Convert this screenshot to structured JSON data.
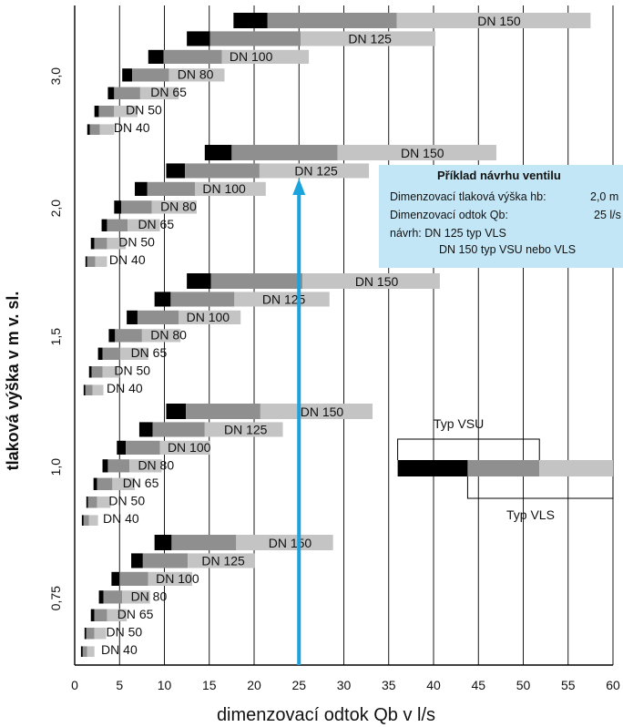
{
  "chart_data": {
    "type": "bar",
    "title": "",
    "xlabel": "dimenzovací odtok Qb v l/s",
    "ylabel": "tlaková výška v  m v. sl.",
    "xlim": [
      0,
      60
    ],
    "xticks": [
      "0",
      "5",
      "10",
      "15",
      "20",
      "25",
      "30",
      "35",
      "40",
      "45",
      "50",
      "55",
      "60"
    ],
    "grid": "vertical",
    "ytick_labels": [
      "0,75",
      "1,0",
      "1,5",
      "2,0",
      "3,0"
    ],
    "colors": {
      "black": "#000000",
      "dark": "#8f8f8f",
      "light": "#c4c4c4",
      "arrow": "#1aa3dc"
    },
    "groups": [
      {
        "label": "3,0",
        "bars": [
          {
            "name": "DN 150",
            "values": [
              17.7,
              21.5,
              35.9,
              57.5
            ]
          },
          {
            "name": "DN 125",
            "values": [
              12.5,
              15.1,
              25.2,
              40.2
            ]
          },
          {
            "name": "DN 100",
            "values": [
              8.2,
              9.9,
              16.4,
              26.1
            ]
          },
          {
            "name": "DN 80",
            "values": [
              5.3,
              6.4,
              10.5,
              16.7
            ]
          },
          {
            "name": "DN 65",
            "values": [
              3.7,
              4.4,
              7.3,
              11.6
            ]
          },
          {
            "name": "DN 50",
            "values": [
              2.2,
              2.7,
              4.4,
              7.0
            ]
          },
          {
            "name": "DN 40",
            "values": [
              1.4,
              1.7,
              2.8,
              4.4
            ]
          }
        ]
      },
      {
        "label": "2,0",
        "bars": [
          {
            "name": "DN 150",
            "values": [
              14.5,
              17.5,
              29.3,
              47.0
            ]
          },
          {
            "name": "DN 125",
            "values": [
              10.2,
              12.3,
              20.6,
              32.8
            ]
          },
          {
            "name": "DN 100",
            "values": [
              6.7,
              8.1,
              13.4,
              21.3
            ]
          },
          {
            "name": "DN 80",
            "values": [
              4.4,
              5.2,
              8.6,
              13.6
            ]
          },
          {
            "name": "DN 65",
            "values": [
              3.0,
              3.6,
              5.9,
              9.5
            ]
          },
          {
            "name": "DN 50",
            "values": [
              1.8,
              2.2,
              3.6,
              5.7
            ]
          },
          {
            "name": "DN 40",
            "values": [
              1.2,
              1.4,
              2.3,
              3.6
            ]
          }
        ]
      },
      {
        "label": "1,5",
        "bars": [
          {
            "name": "DN 150",
            "values": [
              12.5,
              15.2,
              25.4,
              40.7
            ]
          },
          {
            "name": "DN 125",
            "values": [
              8.9,
              10.7,
              17.8,
              28.4
            ]
          },
          {
            "name": "DN 100",
            "values": [
              5.8,
              7.0,
              11.6,
              18.5
            ]
          },
          {
            "name": "DN 80",
            "values": [
              3.8,
              4.5,
              7.5,
              11.8
            ]
          },
          {
            "name": "DN 65",
            "values": [
              2.6,
              3.1,
              5.1,
              8.2
            ]
          },
          {
            "name": "DN 50",
            "values": [
              1.6,
              1.9,
              3.1,
              5.0
            ]
          },
          {
            "name": "DN 40",
            "values": [
              1.0,
              1.2,
              2.0,
              3.2
            ]
          }
        ]
      },
      {
        "label": "1,0",
        "bars": [
          {
            "name": "DN 150",
            "values": [
              10.2,
              12.4,
              20.7,
              33.2
            ]
          },
          {
            "name": "DN 125",
            "values": [
              7.2,
              8.7,
              14.5,
              23.2
            ]
          },
          {
            "name": "DN 100",
            "values": [
              4.7,
              5.7,
              9.5,
              15.1
            ]
          },
          {
            "name": "DN 80",
            "values": [
              3.1,
              3.7,
              6.1,
              9.7
            ]
          },
          {
            "name": "DN 65",
            "values": [
              2.1,
              2.5,
              4.2,
              6.7
            ]
          },
          {
            "name": "DN 50",
            "values": [
              1.3,
              1.5,
              2.5,
              4.0
            ]
          },
          {
            "name": "DN 40",
            "values": [
              0.8,
              1.0,
              1.6,
              2.6
            ]
          }
        ]
      },
      {
        "label": "0,75",
        "bars": [
          {
            "name": "DN 150",
            "values": [
              8.9,
              10.8,
              18.0,
              28.8
            ]
          },
          {
            "name": "DN 125",
            "values": [
              6.3,
              7.6,
              12.6,
              20.1
            ]
          },
          {
            "name": "DN 100",
            "values": [
              4.1,
              5.0,
              8.2,
              13.1
            ]
          },
          {
            "name": "DN 80",
            "values": [
              2.7,
              3.2,
              5.3,
              8.4
            ]
          },
          {
            "name": "DN 65",
            "values": [
              1.8,
              2.2,
              3.6,
              5.8
            ]
          },
          {
            "name": "DN 50",
            "values": [
              1.1,
              1.3,
              2.2,
              3.5
            ]
          },
          {
            "name": "DN 40",
            "values": [
              0.7,
              0.9,
              1.4,
              2.2
            ]
          }
        ]
      }
    ],
    "arrow": {
      "x": 25,
      "target_group": "2,0",
      "target_bar": "DN 125"
    },
    "legend": {
      "vsu_label": "Typ VSU",
      "vls_label": "Typ VLS",
      "bar_values": [
        36,
        43.8,
        51.8,
        60
      ]
    }
  },
  "example": {
    "title": "Příklad návrhu ventilu",
    "row1_label": "Dimenzovací tlaková výška hb:",
    "row1_value": "2,0 m",
    "row2_label": "Dimenzovací odtok Qb:",
    "row2_value": "25 l/s",
    "row3_label": "návrh:   DN 125  typ VLS",
    "row4_label": "DN 150  typ VSU nebo VLS"
  }
}
